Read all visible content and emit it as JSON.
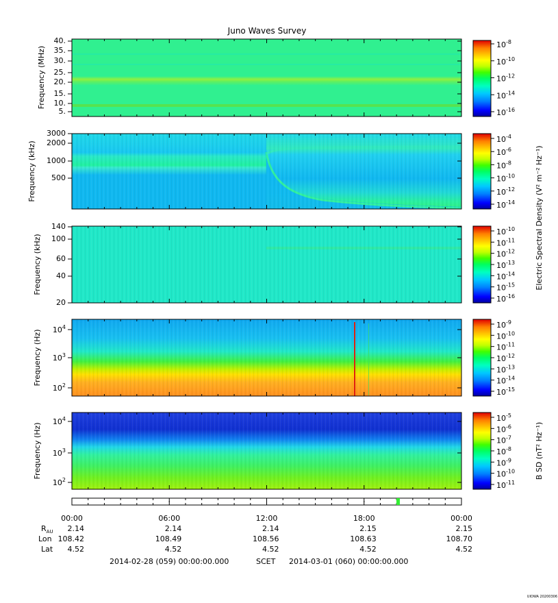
{
  "title": "Juno Waves Survey",
  "ylabel_electric": "Electric Spectral Density (V² m⁻² Hz⁻¹)",
  "ylabel_magnetic": "B SD (nT² Hz⁻¹)",
  "scet_label": "SCET",
  "time_range": {
    "start": "2014-02-28 (059) 00:00:00.000",
    "end": "2014-03-01 (060) 00:00:00.000"
  },
  "footer_credit": "UIOWA 20200306",
  "ephemeris": {
    "labels": {
      "rau": "R",
      "rau_sub": "AU",
      "lon": "Lon",
      "lat": "Lat"
    },
    "rau": [
      "2.14",
      "2.14",
      "2.14",
      "2.15",
      "2.15"
    ],
    "lon": [
      "108.42",
      "108.49",
      "108.56",
      "108.63",
      "108.70"
    ],
    "lat": [
      "4.52",
      "4.52",
      "4.52",
      "4.52",
      "4.52"
    ]
  },
  "chart_data": [
    {
      "type": "heatmap",
      "title": "Juno Waves Survey",
      "ylabel": "Frequency (MHz)",
      "yticks": [
        "5.",
        "10.",
        "15.",
        "20.",
        "25.",
        "30.",
        "35.",
        "40."
      ],
      "xticks": [
        "00:00",
        "06:00",
        "12:00",
        "18:00",
        "00:00"
      ],
      "colorbar": {
        "exponents": [
          "-8",
          "-10",
          "-12",
          "-14",
          "-16"
        ]
      }
    },
    {
      "type": "heatmap",
      "ylabel": "Frequency (kHz)",
      "yscale": "log",
      "yticks": [
        "3000",
        "2000",
        "1000",
        "500"
      ],
      "xticks": [
        "00:00",
        "06:00",
        "12:00",
        "18:00",
        "00:00"
      ],
      "colorbar": {
        "exponents": [
          "-4",
          "-6",
          "-8",
          "-10",
          "-12",
          "-14"
        ]
      }
    },
    {
      "type": "heatmap",
      "ylabel": "Frequency (kHz)",
      "yticks": [
        "140",
        "100",
        "60",
        "40",
        "20"
      ],
      "xticks": [
        "00:00",
        "06:00",
        "12:00",
        "18:00",
        "00:00"
      ],
      "colorbar": {
        "exponents": [
          "-10",
          "-11",
          "-12",
          "-13",
          "-14",
          "-15",
          "-16"
        ]
      }
    },
    {
      "type": "heatmap",
      "ylabel": "Frequency (Hz)",
      "yscale": "log",
      "yticks": [
        {
          "base": "10",
          "exp": "4"
        },
        {
          "base": "10",
          "exp": "3"
        },
        {
          "base": "10",
          "exp": "2"
        }
      ],
      "xticks": [
        "00:00",
        "06:00",
        "12:00",
        "18:00",
        "00:00"
      ],
      "colorbar": {
        "exponents": [
          "-9",
          "-10",
          "-11",
          "-12",
          "-13",
          "-14",
          "-15"
        ]
      }
    },
    {
      "type": "heatmap",
      "ylabel": "Frequency (Hz)",
      "yscale": "log",
      "yticks": [
        {
          "base": "10",
          "exp": "4"
        },
        {
          "base": "10",
          "exp": "3"
        },
        {
          "base": "10",
          "exp": "2"
        }
      ],
      "xticks": [
        "00:00",
        "06:00",
        "12:00",
        "18:00",
        "00:00"
      ],
      "colorbar": {
        "exponents": [
          "-5",
          "-6",
          "-7",
          "-8",
          "-9",
          "-10",
          "-11"
        ]
      }
    }
  ],
  "colors": {
    "colormap": [
      "#0000a0",
      "#0000ff",
      "#0080ff",
      "#00c8ff",
      "#00ffc0",
      "#00ff60",
      "#40ff00",
      "#c0ff00",
      "#ffff00",
      "#ffc000",
      "#ff8000",
      "#ff2000",
      "#e00000"
    ],
    "timeline_marker": "#33ee33"
  },
  "x_axis": {
    "ticks": [
      "00:00",
      "06:00",
      "12:00",
      "18:00",
      "00:00"
    ]
  }
}
